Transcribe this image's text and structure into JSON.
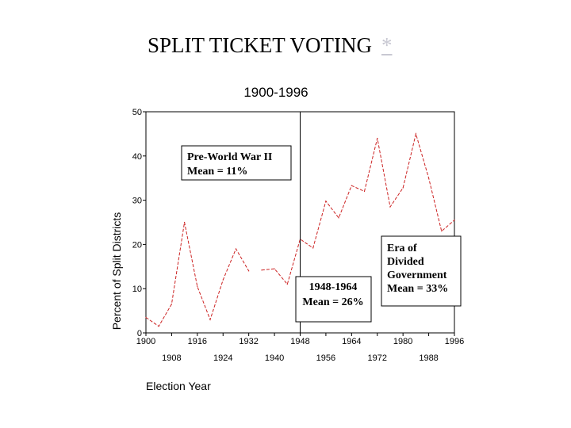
{
  "slide": {
    "title": "SPLIT TICKET VOTING",
    "link_label": "*"
  },
  "chart_data": {
    "type": "line",
    "title": "1900-1996",
    "xlabel": "Election Year",
    "ylabel": "Percent of Split Districts",
    "xlim": [
      1900,
      1996
    ],
    "ylim": [
      0,
      50
    ],
    "y_ticks": [
      0,
      10,
      20,
      30,
      40,
      50
    ],
    "x_ticks_top_row": [
      "1900",
      "1916",
      "1932",
      "1948",
      "1964",
      "1980",
      "1996"
    ],
    "x_ticks_bottom_row": [
      "1908",
      "1924",
      "1940",
      "1956",
      "1972",
      "1988"
    ],
    "series": [
      {
        "name": "Split districts",
        "color": "#cc2222",
        "segments": [
          [
            [
              1900,
              3.5
            ],
            [
              1904,
              1.5
            ],
            [
              1908,
              6.5
            ],
            [
              1912,
              25
            ],
            [
              1916,
              10.5
            ],
            [
              1920,
              3
            ],
            [
              1924,
              12
            ],
            [
              1928,
              19
            ],
            [
              1932,
              14
            ]
          ],
          [
            [
              1936,
              14.2
            ],
            [
              1940,
              14.5
            ],
            [
              1944,
              11
            ],
            [
              1948,
              21.2
            ],
            [
              1952,
              19.2
            ],
            [
              1956,
              29.8
            ],
            [
              1960,
              26
            ],
            [
              1964,
              33.3
            ],
            [
              1968,
              32
            ],
            [
              1972,
              44
            ],
            [
              1976,
              28.5
            ],
            [
              1980,
              32.8
            ],
            [
              1984,
              45
            ],
            [
              1988,
              35
            ],
            [
              1992,
              23
            ],
            [
              1996,
              25.5
            ]
          ]
        ]
      }
    ],
    "divider_year": 1948,
    "annotations": [
      {
        "id": "prewar",
        "lines": [
          "Pre-World War II",
          "Mean = 11%"
        ]
      },
      {
        "id": "postwar",
        "lines": [
          "1948-1964",
          "Mean = 26%"
        ]
      },
      {
        "id": "divided",
        "lines": [
          "Era of",
          "Divided",
          "Government",
          "Mean = 33%"
        ]
      }
    ]
  }
}
